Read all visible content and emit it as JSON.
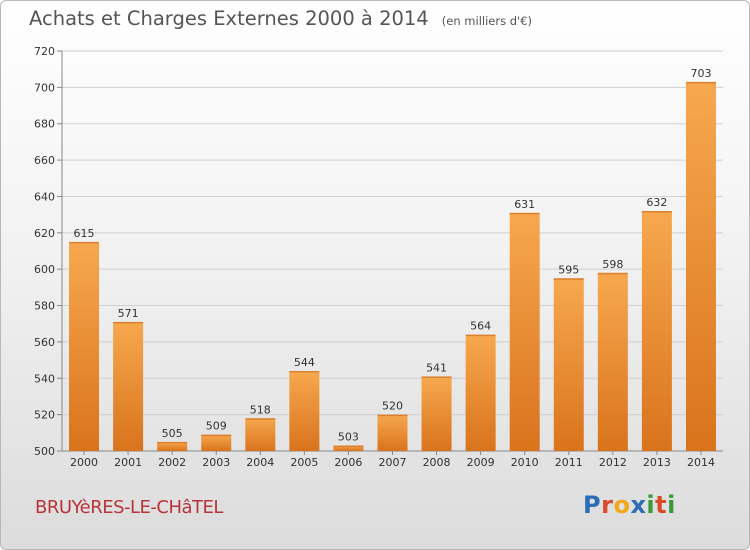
{
  "header": {
    "title": "Achats et Charges Externes 2000 à 2014",
    "subtitle": "(en milliers d'€)"
  },
  "footer": {
    "place": "BRUYèRES-LE-CHâTEL",
    "logo_letters": [
      "P",
      "r",
      "o",
      "x",
      "i",
      "t",
      "i"
    ],
    "logo_colors": [
      "#2c6db5",
      "#d94a2b",
      "#f2a71b",
      "#2c6db5",
      "#3a9a3a",
      "#d94a2b",
      "#3a9a3a"
    ]
  },
  "chart_data": {
    "type": "bar",
    "title": "Achats et Charges Externes 2000 à 2014",
    "subtitle": "(en milliers d'€)",
    "categories": [
      "2000",
      "2001",
      "2002",
      "2003",
      "2004",
      "2005",
      "2006",
      "2007",
      "2008",
      "2009",
      "2010",
      "2011",
      "2012",
      "2013",
      "2014"
    ],
    "values": [
      615,
      571,
      505,
      509,
      518,
      544,
      503,
      520,
      541,
      564,
      631,
      595,
      598,
      632,
      703
    ],
    "ylim": [
      500,
      720
    ],
    "yticks": [
      500,
      520,
      540,
      560,
      580,
      600,
      620,
      640,
      660,
      680,
      700,
      720
    ],
    "grid": true,
    "bar_color_top": "#f7a84e",
    "bar_color_bottom": "#d9731c"
  }
}
